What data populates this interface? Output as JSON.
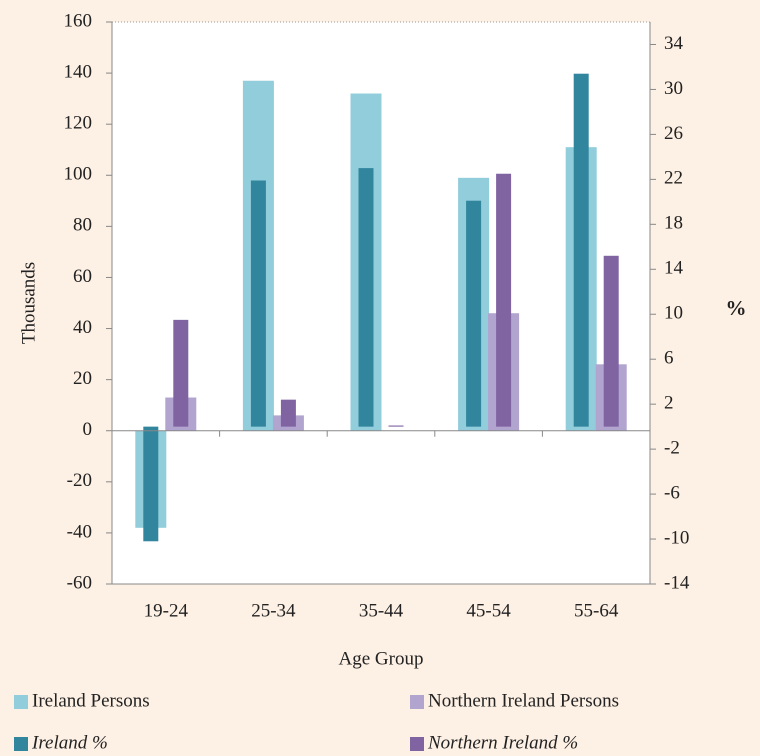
{
  "chart_data": {
    "type": "bar",
    "categories": [
      "19-24",
      "25-34",
      "35-44",
      "45-54",
      "55-64"
    ],
    "xlabel": "Age Group",
    "ylabel": "Thousands",
    "y2label": "%",
    "ylim": [
      -60,
      160
    ],
    "yticks": [
      -60,
      -40,
      -20,
      0,
      20,
      40,
      60,
      80,
      100,
      120,
      140,
      160
    ],
    "y2lim": [
      -14,
      36
    ],
    "y2ticks": [
      -14,
      -10,
      -6,
      -2,
      2,
      6,
      10,
      14,
      18,
      22,
      26,
      30,
      34
    ],
    "series": [
      {
        "name": "Ireland Persons",
        "color": "#92cddc",
        "values": [
          -38,
          137,
          132,
          99,
          111
        ]
      },
      {
        "name": "Northern Ireland Persons",
        "color": "#b1a4cf",
        "values": [
          13,
          6,
          0,
          46,
          26
        ]
      },
      {
        "name": "Ireland %",
        "color": "#31859c",
        "axis": "y2",
        "values": [
          -10.2,
          21.9,
          23,
          20.1,
          31.4
        ]
      },
      {
        "name": "Northern Ireland %",
        "color": "#8064a2",
        "axis": "y2",
        "values": [
          9.5,
          2.4,
          0.1,
          22.5,
          15.2
        ]
      }
    ]
  }
}
